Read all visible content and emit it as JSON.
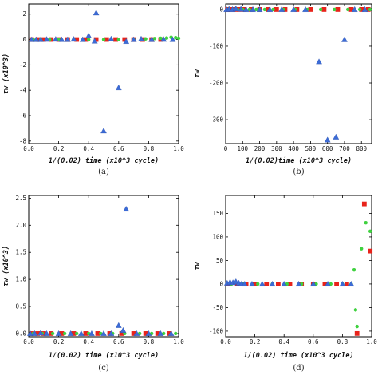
{
  "chart_data": [
    {
      "type": "scatter",
      "caption": "(a)",
      "xlabel": "1/(0.02) time (x10^3 cycle)",
      "ylabel": "τw (x10^3)",
      "xlim": [
        0,
        1.0
      ],
      "ylim": [
        -8.2,
        2.8
      ],
      "xticks": [
        0,
        0.2,
        0.4,
        0.6,
        0.8,
        1.0
      ],
      "xtick_labels": [
        "0.0",
        "0.2",
        "0.4",
        "0.6",
        "0.8",
        "1.0"
      ],
      "yticks": [
        -8,
        -6,
        -4,
        -2,
        0,
        2
      ],
      "ytick_labels": [
        "-8",
        "-6",
        "-4",
        "-2",
        "0",
        "2"
      ],
      "series": [
        {
          "marker": "triangle",
          "color": "#3c6bd6",
          "points": [
            [
              0.02,
              0
            ],
            [
              0.05,
              0
            ],
            [
              0.08,
              0
            ],
            [
              0.12,
              0.02
            ],
            [
              0.18,
              0.03
            ],
            [
              0.22,
              0
            ],
            [
              0.26,
              0
            ],
            [
              0.3,
              0.03
            ],
            [
              0.36,
              0
            ],
            [
              0.4,
              0.3
            ],
            [
              0.44,
              -0.12
            ],
            [
              0.45,
              2.1
            ],
            [
              0.5,
              -7.2
            ],
            [
              0.55,
              0.05
            ],
            [
              0.6,
              -3.8
            ],
            [
              0.65,
              -0.15
            ],
            [
              0.7,
              0
            ],
            [
              0.75,
              0.05
            ],
            [
              0.82,
              0
            ],
            [
              0.9,
              0.02
            ],
            [
              0.96,
              0
            ]
          ]
        },
        {
          "marker": "square",
          "color": "#e8231b",
          "points": [
            [
              0.02,
              0
            ],
            [
              0.06,
              0
            ],
            [
              0.1,
              0
            ],
            [
              0.15,
              0
            ],
            [
              0.2,
              0
            ],
            [
              0.26,
              0
            ],
            [
              0.32,
              0
            ],
            [
              0.38,
              0
            ],
            [
              0.45,
              0
            ],
            [
              0.52,
              0
            ],
            [
              0.58,
              0
            ],
            [
              0.64,
              0
            ],
            [
              0.7,
              0
            ],
            [
              0.76,
              0
            ],
            [
              0.82,
              0
            ],
            [
              0.88,
              0
            ]
          ]
        },
        {
          "marker": "circle",
          "color": "#3fd13f",
          "points": [
            [
              0.03,
              0
            ],
            [
              0.08,
              0
            ],
            [
              0.14,
              0
            ],
            [
              0.2,
              0
            ],
            [
              0.3,
              0
            ],
            [
              0.4,
              0
            ],
            [
              0.5,
              0
            ],
            [
              0.6,
              0
            ],
            [
              0.7,
              0
            ],
            [
              0.78,
              0.05
            ],
            [
              0.84,
              0.08
            ],
            [
              0.88,
              0.1
            ],
            [
              0.92,
              0.12
            ],
            [
              0.95,
              0.18
            ],
            [
              0.98,
              0.15
            ],
            [
              1.0,
              0.1
            ]
          ]
        }
      ]
    },
    {
      "type": "scatter",
      "caption": "(b)",
      "xlabel": "1/(0.02)time (x10^3 cycle)",
      "ylabel": "τw",
      "xlim": [
        0,
        860
      ],
      "ylim": [
        -365,
        15
      ],
      "xticks": [
        0,
        100,
        200,
        300,
        400,
        500,
        600,
        700,
        800
      ],
      "xtick_labels": [
        "0",
        "100",
        "200",
        "300",
        "400",
        "500",
        "600",
        "700",
        "800"
      ],
      "yticks": [
        -300,
        -200,
        -100,
        0
      ],
      "ytick_labels": [
        "-300",
        "-200",
        "-100",
        "0"
      ],
      "series": [
        {
          "marker": "triangle",
          "color": "#3c6bd6",
          "points": [
            [
              5,
              0
            ],
            [
              20,
              1
            ],
            [
              40,
              0
            ],
            [
              60,
              2
            ],
            [
              90,
              1
            ],
            [
              120,
              0
            ],
            [
              160,
              0
            ],
            [
              200,
              0
            ],
            [
              260,
              0
            ],
            [
              330,
              0
            ],
            [
              400,
              0
            ],
            [
              470,
              0
            ],
            [
              550,
              -142
            ],
            [
              600,
              -355
            ],
            [
              650,
              -347
            ],
            [
              700,
              -82
            ],
            [
              760,
              0
            ],
            [
              820,
              0
            ]
          ]
        },
        {
          "marker": "square",
          "color": "#e8231b",
          "points": [
            [
              10,
              0
            ],
            [
              30,
              0
            ],
            [
              55,
              0
            ],
            [
              80,
              0
            ],
            [
              110,
              0
            ],
            [
              150,
              0
            ],
            [
              200,
              0
            ],
            [
              250,
              0
            ],
            [
              300,
              0
            ],
            [
              350,
              0
            ],
            [
              420,
              0
            ],
            [
              500,
              0
            ],
            [
              580,
              0
            ],
            [
              660,
              0
            ],
            [
              740,
              0
            ],
            [
              800,
              0
            ],
            [
              840,
              0
            ]
          ]
        },
        {
          "marker": "circle",
          "color": "#3fd13f",
          "points": [
            [
              15,
              0
            ],
            [
              45,
              0
            ],
            [
              70,
              0
            ],
            [
              100,
              0
            ],
            [
              140,
              0
            ],
            [
              180,
              0
            ],
            [
              230,
              0
            ],
            [
              280,
              0
            ],
            [
              340,
              0
            ],
            [
              410,
              0
            ],
            [
              480,
              0
            ],
            [
              560,
              0
            ],
            [
              640,
              0
            ],
            [
              720,
              0
            ],
            [
              790,
              0
            ],
            [
              850,
              0
            ]
          ]
        }
      ]
    },
    {
      "type": "scatter",
      "caption": "(c)",
      "xlabel": "1/(0.02) time (x10^3 cycle)",
      "ylabel": "τw (x10^3)",
      "xlim": [
        0,
        1.0
      ],
      "ylim": [
        -0.06,
        2.55
      ],
      "xticks": [
        0,
        0.2,
        0.4,
        0.6,
        0.8,
        1.0
      ],
      "xtick_labels": [
        "0.0",
        "0.2",
        "0.4",
        "0.6",
        "0.8",
        "1.0"
      ],
      "yticks": [
        0,
        0.5,
        1.0,
        1.5,
        2.0,
        2.5
      ],
      "ytick_labels": [
        "0.0",
        "0.5",
        "1.0",
        "1.5",
        "2.0",
        "2.5"
      ],
      "series": [
        {
          "marker": "triangle",
          "color": "#3c6bd6",
          "points": [
            [
              0.01,
              0
            ],
            [
              0.04,
              0
            ],
            [
              0.08,
              0.01
            ],
            [
              0.12,
              0
            ],
            [
              0.2,
              0
            ],
            [
              0.28,
              0
            ],
            [
              0.35,
              0
            ],
            [
              0.42,
              0
            ],
            [
              0.5,
              0
            ],
            [
              0.55,
              0
            ],
            [
              0.6,
              0.15
            ],
            [
              0.63,
              0.06
            ],
            [
              0.65,
              2.3
            ],
            [
              0.72,
              0
            ],
            [
              0.8,
              0
            ],
            [
              0.88,
              0
            ],
            [
              0.95,
              0
            ]
          ]
        },
        {
          "marker": "square",
          "color": "#e8231b",
          "points": [
            [
              0.02,
              0
            ],
            [
              0.06,
              0
            ],
            [
              0.1,
              0
            ],
            [
              0.15,
              0
            ],
            [
              0.22,
              0
            ],
            [
              0.3,
              0
            ],
            [
              0.38,
              0
            ],
            [
              0.46,
              0
            ],
            [
              0.54,
              0
            ],
            [
              0.62,
              0
            ],
            [
              0.7,
              0
            ],
            [
              0.78,
              0
            ],
            [
              0.86,
              0
            ],
            [
              0.94,
              0
            ]
          ]
        },
        {
          "marker": "circle",
          "color": "#3fd13f",
          "points": [
            [
              0.03,
              0
            ],
            [
              0.09,
              0
            ],
            [
              0.16,
              0
            ],
            [
              0.24,
              0
            ],
            [
              0.32,
              0
            ],
            [
              0.4,
              0
            ],
            [
              0.48,
              0
            ],
            [
              0.56,
              0
            ],
            [
              0.64,
              0
            ],
            [
              0.74,
              0
            ],
            [
              0.82,
              0
            ],
            [
              0.9,
              0
            ],
            [
              0.98,
              0
            ]
          ]
        }
      ]
    },
    {
      "type": "scatter",
      "caption": "(d)",
      "xlabel": "1/(0.02) time (x10^3 cycle)",
      "ylabel": "τw",
      "xlim": [
        0,
        1.0
      ],
      "ylim": [
        -112,
        188
      ],
      "xticks": [
        0,
        0.2,
        0.4,
        0.6,
        0.8,
        1.0
      ],
      "xtick_labels": [
        "0.0",
        "0.2",
        "0.4",
        "0.6",
        "0.8",
        "1.0"
      ],
      "yticks": [
        -100,
        -50,
        0,
        50,
        100,
        150
      ],
      "ytick_labels": [
        "-100",
        "-50",
        "0",
        "50",
        "100",
        "150"
      ],
      "series": [
        {
          "marker": "triangle",
          "color": "#3c6bd6",
          "points": [
            [
              0.01,
              2
            ],
            [
              0.03,
              4
            ],
            [
              0.05,
              3
            ],
            [
              0.07,
              5
            ],
            [
              0.09,
              2
            ],
            [
              0.11,
              1
            ],
            [
              0.13,
              0
            ],
            [
              0.18,
              0
            ],
            [
              0.25,
              0
            ],
            [
              0.32,
              0
            ],
            [
              0.4,
              0
            ],
            [
              0.5,
              0
            ],
            [
              0.6,
              0
            ],
            [
              0.7,
              0
            ],
            [
              0.8,
              0
            ],
            [
              0.86,
              0
            ]
          ]
        },
        {
          "marker": "square",
          "color": "#e8231b",
          "points": [
            [
              0.02,
              0
            ],
            [
              0.08,
              0
            ],
            [
              0.14,
              0
            ],
            [
              0.2,
              0
            ],
            [
              0.28,
              0
            ],
            [
              0.36,
              0
            ],
            [
              0.44,
              0
            ],
            [
              0.52,
              0
            ],
            [
              0.6,
              0
            ],
            [
              0.68,
              0
            ],
            [
              0.76,
              0
            ],
            [
              0.83,
              0
            ],
            [
              0.9,
              -105
            ],
            [
              0.95,
              170
            ],
            [
              0.99,
              70
            ]
          ]
        },
        {
          "marker": "circle",
          "color": "#3fd13f",
          "points": [
            [
              0.04,
              0
            ],
            [
              0.12,
              0
            ],
            [
              0.22,
              0
            ],
            [
              0.32,
              0
            ],
            [
              0.42,
              0
            ],
            [
              0.52,
              0
            ],
            [
              0.62,
              0
            ],
            [
              0.72,
              0
            ],
            [
              0.8,
              0
            ],
            [
              0.86,
              0
            ],
            [
              0.88,
              30
            ],
            [
              0.89,
              -55
            ],
            [
              0.9,
              -90
            ],
            [
              0.93,
              75
            ],
            [
              0.96,
              130
            ],
            [
              0.99,
              112
            ]
          ]
        }
      ]
    }
  ]
}
